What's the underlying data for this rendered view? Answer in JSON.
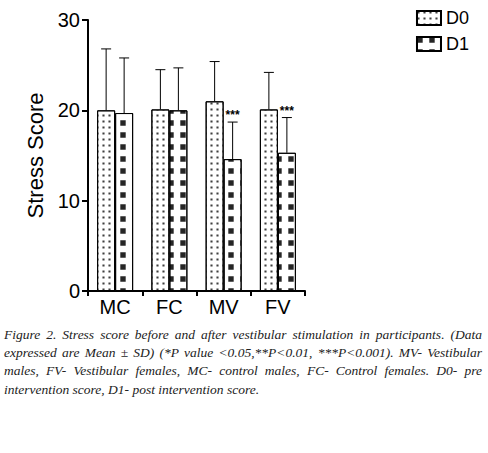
{
  "chart_data": {
    "type": "bar",
    "y_label": "Stress Score",
    "categories": [
      "MC",
      "FC",
      "MV",
      "FV"
    ],
    "series": [
      {
        "name": "D0",
        "color": "#ffffff",
        "values": [
          20.0,
          20.1,
          21.0,
          20.1
        ],
        "errors": [
          6.8,
          4.4,
          4.4,
          4.1
        ]
      },
      {
        "name": "D1",
        "color": "#ffffff",
        "values": [
          19.7,
          20.0,
          14.6,
          15.3
        ],
        "errors": [
          6.1,
          4.7,
          4.1,
          3.9
        ]
      }
    ],
    "annotations": [
      {
        "category": "MV",
        "series": "D1",
        "text": "***"
      },
      {
        "category": "FV",
        "series": "D1",
        "text": "***"
      }
    ],
    "ylim": [
      0,
      30
    ],
    "yticks": [
      0,
      10,
      20,
      30
    ],
    "grid": false,
    "legend": "upper right",
    "caption": "Figure 2. Stress score before and after vestibular stimulation in participants. (Data expressed are Mean ± SD) (*P value <0.05,**P<0.01, ***P<0.001). MV- Vestibular males, FV- Vestibular females, MC- control males, FC- Control females. D0- pre intervention score, D1- post intervention score."
  }
}
